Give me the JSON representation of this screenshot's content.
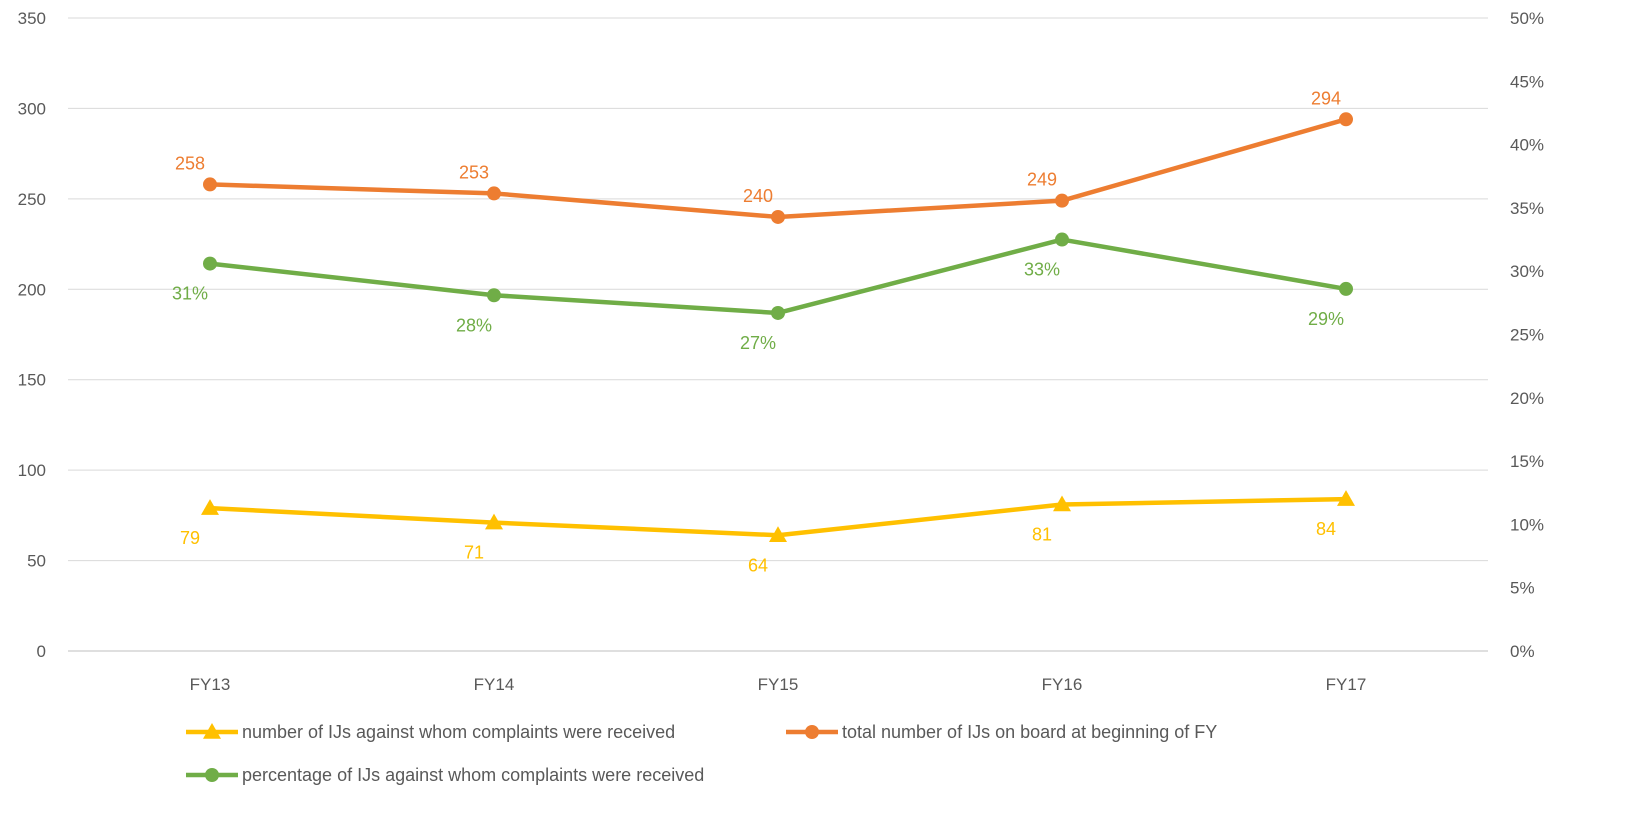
{
  "chart_data": {
    "type": "line",
    "categories": [
      "FY13",
      "FY14",
      "FY15",
      "FY16",
      "FY17"
    ],
    "y_left": {
      "range": [
        0,
        350
      ],
      "ticks": [
        "0",
        "50",
        "100",
        "150",
        "200",
        "250",
        "300",
        "350"
      ]
    },
    "y_right": {
      "range": [
        0,
        0.5
      ],
      "ticks": [
        "0%",
        "5%",
        "10%",
        "15%",
        "20%",
        "25%",
        "30%",
        "35%",
        "40%",
        "45%",
        "50%"
      ]
    },
    "grid": true,
    "legend_position": "bottom",
    "series": [
      {
        "name": "number of IJs against whom complaints were received",
        "axis": "left",
        "color": "#FFC000",
        "marker": "triangle",
        "label_position": "below",
        "values": [
          79,
          71,
          64,
          81,
          84
        ],
        "labels": [
          "79",
          "71",
          "64",
          "81",
          "84"
        ]
      },
      {
        "name": "total number of IJs on board at beginning of FY",
        "axis": "left",
        "color": "#ED7D31",
        "marker": "circle",
        "label_position": "above",
        "values": [
          258,
          253,
          240,
          249,
          294
        ],
        "labels": [
          "258",
          "253",
          "240",
          "249",
          "294"
        ]
      },
      {
        "name": "percentage of IJs against whom complaints were received",
        "axis": "right",
        "color": "#70AD47",
        "marker": "circle",
        "label_position": "below",
        "values": [
          0.306,
          0.281,
          0.267,
          0.325,
          0.286
        ],
        "labels": [
          "31%",
          "28%",
          "27%",
          "33%",
          "29%"
        ]
      }
    ]
  }
}
